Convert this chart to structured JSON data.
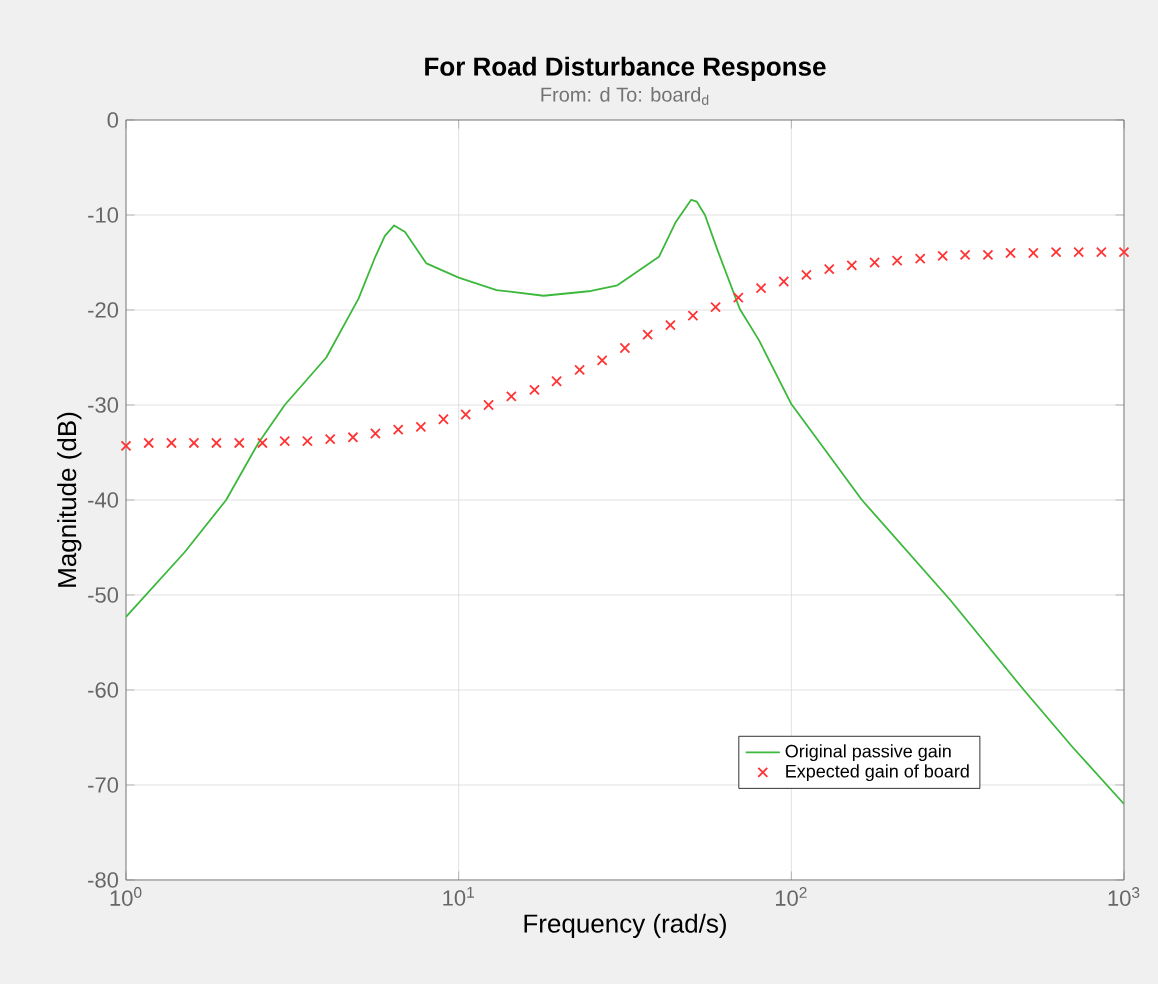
{
  "chart_data": {
    "type": "line",
    "title": "For Road Disturbance Response",
    "subtitle": "From: d  To: board$_{d}$",
    "xlabel": "Frequency  (rad/s)",
    "ylabel": "Magnitude (dB)",
    "log": "x",
    "xlim": [
      1,
      1000
    ],
    "ylim": [
      -80,
      0
    ],
    "xticks": [
      {
        "value": 1,
        "label": "10$^{0}$"
      },
      {
        "value": 10,
        "label": "10$^{1}$"
      },
      {
        "value": 100,
        "label": "10$^{2}$"
      },
      {
        "value": 1000,
        "label": "10$^{3}$"
      }
    ],
    "yticks": [
      -80,
      -70,
      -60,
      -50,
      -40,
      -30,
      -20,
      -10,
      0
    ],
    "grid": true,
    "legend": "bottom",
    "series": [
      {
        "name": "Original passive gain",
        "color": "#3cb83c",
        "marker": "none",
        "x": [
          1,
          1.5,
          2,
          2.5,
          3,
          4,
          5,
          5.6,
          6,
          6.4,
          6.9,
          8,
          10,
          13,
          18,
          25,
          30,
          40,
          45,
          50,
          52,
          55,
          60,
          70,
          80,
          100,
          163,
          300,
          500,
          700,
          1000
        ],
        "values": [
          -52.3,
          -45.5,
          -40,
          -34,
          -30,
          -25,
          -18.8,
          -14.5,
          -12.2,
          -11.1,
          -11.8,
          -15.1,
          -16.6,
          -17.9,
          -18.5,
          -18,
          -17.4,
          -14.4,
          -10.7,
          -8.4,
          -8.6,
          -10,
          -13.7,
          -19.9,
          -23.2,
          -29.9,
          -40,
          -50.5,
          -60,
          -66,
          -72
        ]
      },
      {
        "name": "Expected gain of board",
        "type": "scatter",
        "color": "#ff3333",
        "marker": "cross",
        "x": [
          1,
          1.17,
          1.37,
          1.6,
          1.87,
          2.19,
          2.57,
          3.0,
          3.51,
          4.11,
          4.81,
          5.62,
          6.58,
          7.7,
          9.0,
          10.5,
          12.3,
          14.4,
          16.9,
          19.7,
          23.1,
          27.0,
          31.6,
          37.0,
          43.3,
          50.6,
          59.2,
          69.3,
          81.1,
          94.9,
          111,
          130,
          152,
          178,
          208,
          244,
          285,
          333,
          390,
          456,
          534,
          625,
          731,
          855,
          1000
        ],
        "values": [
          -34.3,
          -34.0,
          -34.0,
          -34.0,
          -34.0,
          -34.0,
          -34.0,
          -33.8,
          -33.8,
          -33.6,
          -33.4,
          -33.0,
          -32.6,
          -32.3,
          -31.5,
          -31.0,
          -30.0,
          -29.1,
          -28.4,
          -27.5,
          -26.3,
          -25.3,
          -24.0,
          -22.6,
          -21.6,
          -20.6,
          -19.7,
          -18.7,
          -17.7,
          -17.0,
          -16.3,
          -15.7,
          -15.3,
          -15.0,
          -14.8,
          -14.6,
          -14.3,
          -14.2,
          -14.2,
          -14.0,
          -14.0,
          -13.9,
          -13.9,
          -13.9,
          -13.9
        ]
      }
    ]
  }
}
